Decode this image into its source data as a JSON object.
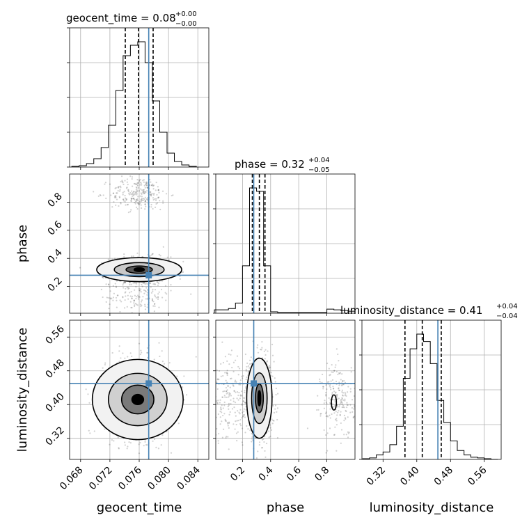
{
  "chart_data": {
    "type": "corner",
    "parameters": [
      "geocent_time",
      "phase",
      "luminosity_distance"
    ],
    "truth_color": "#4682b4",
    "truths": {
      "geocent_time": 0.0773,
      "phase": 0.28,
      "luminosity_distance": 0.45
    },
    "axes": {
      "geocent_time": {
        "range": [
          0.0665,
          0.0855
        ],
        "ticks": [
          0.068,
          0.072,
          0.076,
          0.08,
          0.084
        ],
        "tick_labels": [
          "0.068",
          "0.072",
          "0.076",
          "0.080",
          "0.084"
        ]
      },
      "phase": {
        "range": [
          0.01,
          1.0
        ],
        "ticks": [
          0.2,
          0.4,
          0.6,
          0.8
        ],
        "tick_labels": [
          "0.2",
          "0.4",
          "0.6",
          "0.8"
        ]
      },
      "luminosity_distance": {
        "range": [
          0.27,
          0.6
        ],
        "ticks": [
          0.32,
          0.4,
          0.48,
          0.56
        ],
        "tick_labels": [
          "0.32",
          "0.40",
          "0.48",
          "0.56"
        ]
      }
    },
    "titles": {
      "geocent_time": {
        "text": "geocent_time = 0.08",
        "plus": "+0.00",
        "minus": "−0.00"
      },
      "phase": {
        "text": "phase = 0.32",
        "plus": "+0.04",
        "minus": "−0.05"
      },
      "luminosity_distance": {
        "text": "luminosity_distance = 0.41",
        "plus": "+0.04",
        "minus": "−0.04"
      }
    },
    "quantiles": {
      "geocent_time": [
        0.0741,
        0.0759,
        0.0779
      ],
      "phase": [
        0.27,
        0.32,
        0.36
      ],
      "luminosity_distance": [
        0.372,
        0.413,
        0.458
      ]
    },
    "histograms": {
      "geocent_time": {
        "edges": [
          0.0668,
          0.0678,
          0.0688,
          0.0698,
          0.0708,
          0.0718,
          0.0728,
          0.0738,
          0.0748,
          0.0758,
          0.0768,
          0.0778,
          0.0788,
          0.0798,
          0.0808,
          0.0818,
          0.0828,
          0.0838
        ],
        "counts": [
          1,
          2,
          5,
          12,
          28,
          60,
          110,
          160,
          175,
          180,
          150,
          95,
          50,
          20,
          8,
          3,
          1
        ]
      },
      "phase": {
        "edges": [
          0.0,
          0.05,
          0.1,
          0.15,
          0.2,
          0.25,
          0.3,
          0.35,
          0.4,
          0.45,
          0.5,
          0.55,
          0.6,
          0.65,
          0.7,
          0.75,
          0.8,
          0.85,
          0.9,
          0.95,
          1.0
        ],
        "counts": [
          5,
          5,
          7,
          15,
          70,
          185,
          180,
          70,
          2,
          1,
          1,
          1,
          1,
          1,
          1,
          1,
          6,
          5,
          4,
          3
        ]
      },
      "luminosity_distance": {
        "edges": [
          0.272,
          0.288,
          0.304,
          0.32,
          0.336,
          0.352,
          0.368,
          0.384,
          0.4,
          0.416,
          0.432,
          0.448,
          0.464,
          0.48,
          0.496,
          0.512,
          0.528,
          0.544,
          0.56,
          0.576,
          0.592
        ],
        "counts": [
          1,
          2,
          6,
          10,
          20,
          45,
          110,
          150,
          170,
          160,
          130,
          80,
          50,
          25,
          12,
          6,
          3,
          2,
          1,
          0
        ]
      }
    }
  },
  "axis_labels": {
    "geocent_time": "geocent_time",
    "phase": "phase",
    "luminosity_distance": "luminosity_distance"
  }
}
